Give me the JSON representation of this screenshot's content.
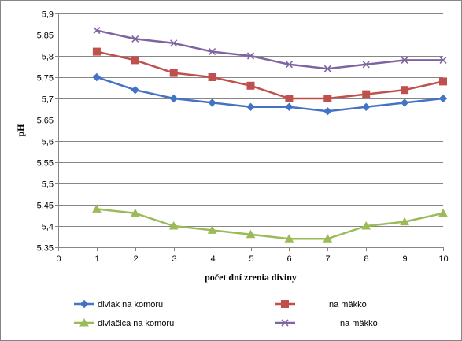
{
  "chart_data": {
    "type": "line",
    "title": "",
    "xlabel": "počet dní zrenia diviny",
    "ylabel": "pH",
    "xlim": [
      0,
      10
    ],
    "ylim": [
      5.35,
      5.9
    ],
    "x_ticks": [
      0,
      1,
      2,
      3,
      4,
      5,
      6,
      7,
      8,
      9,
      10
    ],
    "x_tick_labels": [
      "0",
      "1",
      "2",
      "3",
      "4",
      "5",
      "6",
      "7",
      "8",
      "9",
      "10"
    ],
    "y_ticks": [
      5.35,
      5.4,
      5.45,
      5.5,
      5.55,
      5.6,
      5.65,
      5.7,
      5.75,
      5.8,
      5.85,
      5.9
    ],
    "y_tick_labels": [
      "5,35",
      "5,4",
      "5,45",
      "5,5",
      "5,55",
      "5,6",
      "5,65",
      "5,7",
      "5,75",
      "5,8",
      "5,85",
      "5,9"
    ],
    "grid": "horizontal",
    "legend_position": "bottom",
    "x": [
      1,
      2,
      3,
      4,
      5,
      6,
      7,
      8,
      9,
      10
    ],
    "series": [
      {
        "name": "diviak na komoru",
        "color": "#4472C4",
        "marker": "diamond",
        "values": [
          5.75,
          5.72,
          5.7,
          5.69,
          5.68,
          5.68,
          5.67,
          5.68,
          5.69,
          5.7
        ]
      },
      {
        "name": "na mäkko",
        "color": "#C0504D",
        "marker": "square",
        "values": [
          5.81,
          5.79,
          5.76,
          5.75,
          5.73,
          5.7,
          5.7,
          5.71,
          5.72,
          5.74
        ]
      },
      {
        "name": "diviačica na komoru",
        "color": "#9BBB59",
        "marker": "triangle",
        "values": [
          5.44,
          5.43,
          5.4,
          5.39,
          5.38,
          5.37,
          5.37,
          5.4,
          5.41,
          5.43
        ]
      },
      {
        "name": "na mäkko",
        "color": "#8064A2",
        "marker": "cross",
        "values": [
          5.86,
          5.84,
          5.83,
          5.81,
          5.8,
          5.78,
          5.77,
          5.78,
          5.79,
          5.79
        ]
      }
    ]
  }
}
